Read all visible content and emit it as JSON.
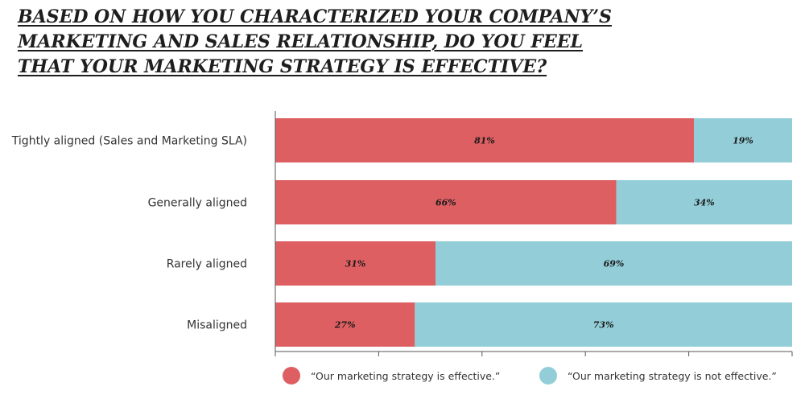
{
  "title_lines": [
    "BASED ON HOW YOU CHARACTERIZED YOUR COMPANY’S",
    "MARKETING AND SALES RELATIONSHIP, DO YOU FEEL",
    "THAT YOUR MARKETING STRATEGY IS EFFECTIVE?"
  ],
  "colors": {
    "effective": "#dd5f62",
    "not_effective": "#93ced8",
    "axis": "#555555"
  },
  "chart_data": {
    "type": "bar",
    "orientation": "horizontal",
    "stacked": true,
    "categories": [
      "Tightly aligned (Sales and Marketing SLA)",
      "Generally aligned",
      "Rarely aligned",
      "Misaligned"
    ],
    "series": [
      {
        "name": "“Our marketing strategy is effective.”",
        "values": [
          81,
          66,
          31,
          27
        ],
        "labels": [
          "81%",
          "66%",
          "31%",
          "27%"
        ]
      },
      {
        "name": "“Our marketing strategy is not effective.”",
        "values": [
          19,
          34,
          69,
          73
        ],
        "labels": [
          "19%",
          "34%",
          "69%",
          "73%"
        ]
      }
    ],
    "xlim": [
      0,
      100
    ],
    "legend_position": "bottom"
  }
}
